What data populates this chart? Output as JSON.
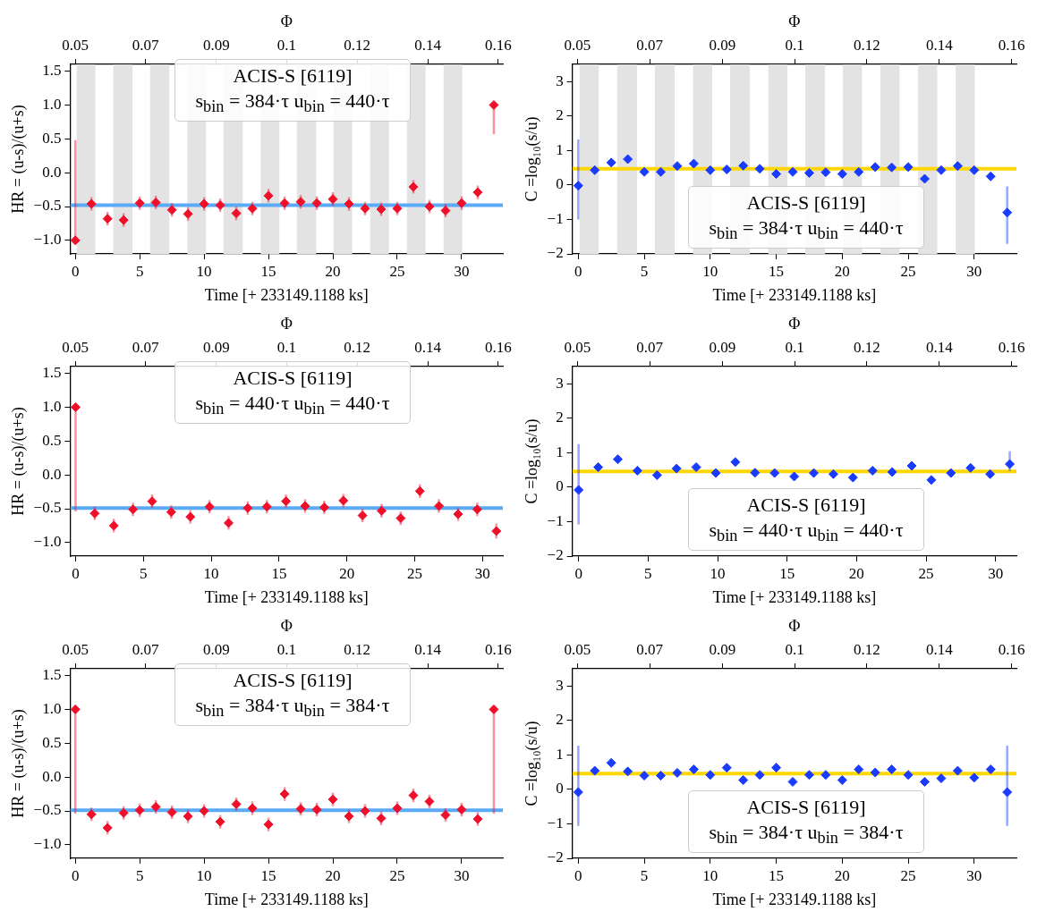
{
  "chart_data": [
    {
      "type": "scatter",
      "xlabel": "Time [+ 233149.1188 ks]",
      "ylabel": "HR = (u-s)/(u+s)",
      "x2label": "Φ",
      "xlim": [
        -0.4,
        33.2
      ],
      "xticks": [
        0,
        5,
        10,
        15,
        20,
        25,
        30
      ],
      "x2lim": [
        0.0487,
        0.1612
      ],
      "x2ticks": [
        {
          "value": 0.05,
          "label": "0.05"
        },
        {
          "value": 0.0683,
          "label": "0.07"
        },
        {
          "value": 0.0867,
          "label": "0.09"
        },
        {
          "value": 0.105,
          "label": "0.1"
        },
        {
          "value": 0.1233,
          "label": "0.12"
        },
        {
          "value": 0.1417,
          "label": "0.14"
        },
        {
          "value": 0.16,
          "label": "0.16"
        }
      ],
      "ylim": [
        -1.2,
        1.6
      ],
      "yticks": [
        {
          "value": -1,
          "label": "−1.0"
        },
        {
          "value": -0.5,
          "label": "−0.5"
        },
        {
          "value": 0,
          "label": "0.0"
        },
        {
          "value": 0.5,
          "label": "0.5"
        },
        {
          "value": 1,
          "label": "1.0"
        },
        {
          "value": 1.5,
          "label": "1.5"
        }
      ],
      "marker": "diamond",
      "legend": false,
      "grid": false,
      "series": [
        {
          "color": "#f0102a",
          "x": [
            0,
            1.25,
            2.5,
            3.75,
            5,
            6.25,
            7.5,
            8.75,
            10,
            11.25,
            12.5,
            13.75,
            15,
            16.25,
            17.5,
            18.75,
            20,
            21.25,
            22.5,
            23.75,
            25,
            26.25,
            27.5,
            28.75,
            30,
            31.25,
            32.5
          ],
          "values": [
            -1.0,
            -0.46,
            -0.68,
            -0.7,
            -0.45,
            -0.44,
            -0.55,
            -0.61,
            -0.46,
            -0.48,
            -0.6,
            -0.53,
            -0.34,
            -0.45,
            -0.43,
            -0.45,
            -0.39,
            -0.46,
            -0.53,
            -0.54,
            -0.53,
            -0.21,
            -0.5,
            -0.56,
            -0.45,
            -0.29,
            1.0
          ],
          "errors": [
            [
              -1.0,
              0.48
            ],
            0.1,
            0.1,
            0.1,
            0.1,
            0.1,
            0.1,
            0.1,
            0.1,
            0.1,
            0.1,
            0.1,
            0.1,
            0.1,
            0.1,
            0.1,
            0.1,
            0.1,
            0.1,
            0.1,
            0.1,
            0.1,
            0.1,
            0.1,
            0.1,
            0.1,
            [
              0.57,
              1.0
            ]
          ]
        }
      ],
      "ref_lines": [
        {
          "axis": "y",
          "value": -0.48,
          "color": "#5aaaf5"
        }
      ],
      "bands": [
        {
          "axis": "x",
          "from": 0.1,
          "to": 1.55,
          "color": "#e3e3e3"
        },
        {
          "axis": "x",
          "from": 2.95,
          "to": 4.45,
          "color": "#e3e3e3"
        },
        {
          "axis": "x",
          "from": 5.8,
          "to": 7.3,
          "color": "#e3e3e3"
        },
        {
          "axis": "x",
          "from": 8.7,
          "to": 10.15,
          "color": "#e3e3e3"
        },
        {
          "axis": "x",
          "from": 11.5,
          "to": 13.0,
          "color": "#e3e3e3"
        },
        {
          "axis": "x",
          "from": 14.4,
          "to": 15.85,
          "color": "#e3e3e3"
        },
        {
          "axis": "x",
          "from": 17.2,
          "to": 18.7,
          "color": "#e3e3e3"
        },
        {
          "axis": "x",
          "from": 20.05,
          "to": 21.5,
          "color": "#e3e3e3"
        },
        {
          "axis": "x",
          "from": 22.9,
          "to": 24.35,
          "color": "#e3e3e3"
        },
        {
          "axis": "x",
          "from": 25.75,
          "to": 27.2,
          "color": "#e3e3e3"
        },
        {
          "axis": "x",
          "from": 28.6,
          "to": 30.05,
          "color": "#e3e3e3"
        }
      ],
      "annotations": [
        "ACIS-S  [6119]",
        "s$_{bin}$ = 384·τ   u$_{bin}$ = 440·τ"
      ]
    },
    {
      "type": "scatter",
      "xlabel": "Time [+ 233149.1188 ks]",
      "ylabel": "C =log₁₀(s/u)",
      "x2label": "Φ",
      "xlim": [
        -0.45,
        33.2
      ],
      "xticks": [
        0,
        5,
        10,
        15,
        20,
        25,
        30
      ],
      "x2lim": [
        0.0487,
        0.1612
      ],
      "x2ticks": [
        {
          "value": 0.05,
          "label": "0.05"
        },
        {
          "value": 0.0683,
          "label": "0.07"
        },
        {
          "value": 0.0867,
          "label": "0.09"
        },
        {
          "value": 0.105,
          "label": "0.1"
        },
        {
          "value": 0.1233,
          "label": "0.12"
        },
        {
          "value": 0.1417,
          "label": "0.14"
        },
        {
          "value": 0.16,
          "label": "0.16"
        }
      ],
      "ylim": [
        -2,
        3.5
      ],
      "yticks": [
        {
          "value": -2,
          "label": "−2"
        },
        {
          "value": -1,
          "label": "−1"
        },
        0,
        1,
        2,
        3
      ],
      "marker": "diamond",
      "legend": false,
      "grid": false,
      "series": [
        {
          "color": "#1a3cff",
          "x": [
            0,
            1.25,
            2.5,
            3.75,
            5,
            6.25,
            7.5,
            8.75,
            10,
            11.25,
            12.5,
            13.75,
            15,
            16.25,
            17.5,
            18.75,
            20,
            21.25,
            22.5,
            23.75,
            25,
            26.25,
            27.5,
            28.75,
            30,
            31.25,
            32.5
          ],
          "values": [
            -0.02,
            0.43,
            0.65,
            0.75,
            0.38,
            0.38,
            0.55,
            0.62,
            0.43,
            0.45,
            0.56,
            0.47,
            0.32,
            0.38,
            0.35,
            0.37,
            0.32,
            0.38,
            0.52,
            0.51,
            0.52,
            0.18,
            0.43,
            0.55,
            0.43,
            0.25,
            -0.8
          ],
          "errors": [
            [
              -1.0,
              1.32
            ],
            0.1,
            0.1,
            0.1,
            0.1,
            0.1,
            0.1,
            0.1,
            0.1,
            0.1,
            0.1,
            0.1,
            0.1,
            0.1,
            0.1,
            0.1,
            0.1,
            0.1,
            0.1,
            0.1,
            0.1,
            0.1,
            0.1,
            0.1,
            0.1,
            0.1,
            [
              -1.71,
              -0.04
            ]
          ]
        }
      ],
      "ref_lines": [
        {
          "axis": "y",
          "value": 0.47,
          "color": "#ffd700"
        }
      ],
      "bands": [
        {
          "axis": "x",
          "from": 0.1,
          "to": 1.55,
          "color": "#e3e3e3"
        },
        {
          "axis": "x",
          "from": 2.95,
          "to": 4.45,
          "color": "#e3e3e3"
        },
        {
          "axis": "x",
          "from": 5.8,
          "to": 7.3,
          "color": "#e3e3e3"
        },
        {
          "axis": "x",
          "from": 8.7,
          "to": 10.15,
          "color": "#e3e3e3"
        },
        {
          "axis": "x",
          "from": 11.5,
          "to": 13.0,
          "color": "#e3e3e3"
        },
        {
          "axis": "x",
          "from": 14.4,
          "to": 15.85,
          "color": "#e3e3e3"
        },
        {
          "axis": "x",
          "from": 17.2,
          "to": 18.7,
          "color": "#e3e3e3"
        },
        {
          "axis": "x",
          "from": 20.05,
          "to": 21.5,
          "color": "#e3e3e3"
        },
        {
          "axis": "x",
          "from": 22.9,
          "to": 24.35,
          "color": "#e3e3e3"
        },
        {
          "axis": "x",
          "from": 25.75,
          "to": 27.2,
          "color": "#e3e3e3"
        },
        {
          "axis": "x",
          "from": 28.6,
          "to": 30.05,
          "color": "#e3e3e3"
        }
      ],
      "annotations": [
        "ACIS-S  [6119]",
        "s$_{bin}$ = 384·τ   u$_{bin}$ = 440·τ"
      ]
    },
    {
      "type": "scatter",
      "xlabel": "Time [+ 233149.1188 ks]",
      "ylabel": "HR = (u-s)/(u+s)",
      "x2label": "Φ",
      "xlim": [
        -0.4,
        31.5
      ],
      "xticks": [
        0,
        5,
        10,
        15,
        20,
        25,
        30
      ],
      "x2lim": [
        0.0487,
        0.1612
      ],
      "x2ticks": [
        {
          "value": 0.05,
          "label": "0.05"
        },
        {
          "value": 0.0683,
          "label": "0.07"
        },
        {
          "value": 0.0867,
          "label": "0.09"
        },
        {
          "value": 0.105,
          "label": "0.1"
        },
        {
          "value": 0.1233,
          "label": "0.12"
        },
        {
          "value": 0.1417,
          "label": "0.14"
        },
        {
          "value": 0.16,
          "label": "0.16"
        }
      ],
      "ylim": [
        -1.2,
        1.6
      ],
      "yticks": [
        {
          "value": -1,
          "label": "−1.0"
        },
        {
          "value": -0.5,
          "label": "−0.5"
        },
        {
          "value": 0,
          "label": "0.0"
        },
        {
          "value": 0.5,
          "label": "0.5"
        },
        {
          "value": 1,
          "label": "1.0"
        },
        {
          "value": 1.5,
          "label": "1.5"
        }
      ],
      "marker": "diamond",
      "legend": false,
      "grid": false,
      "series": [
        {
          "color": "#f0102a",
          "x": [
            0,
            1.41,
            2.82,
            4.23,
            5.64,
            7.05,
            8.46,
            9.87,
            11.28,
            12.69,
            14.1,
            15.51,
            16.92,
            18.33,
            19.74,
            21.15,
            22.56,
            23.97,
            25.38,
            26.79,
            28.2,
            29.61,
            31.02
          ],
          "values": [
            1.0,
            -0.57,
            -0.75,
            -0.51,
            -0.39,
            -0.55,
            -0.62,
            -0.47,
            -0.71,
            -0.49,
            -0.47,
            -0.39,
            -0.46,
            -0.48,
            -0.38,
            -0.6,
            -0.53,
            -0.64,
            -0.24,
            -0.46,
            -0.58,
            -0.51,
            -0.83
          ],
          "errors": [
            [
              -0.54,
              1.0
            ],
            0.1,
            0.1,
            0.1,
            0.1,
            0.1,
            0.1,
            0.1,
            0.1,
            0.1,
            0.1,
            0.1,
            0.1,
            0.1,
            0.1,
            0.1,
            0.1,
            0.1,
            0.1,
            0.1,
            0.1,
            0.1,
            0.11
          ]
        }
      ],
      "ref_lines": [
        {
          "axis": "y",
          "value": -0.49,
          "color": "#5aaaf5"
        }
      ],
      "annotations": [
        "ACIS-S  [6119]",
        "s$_{bin}$ = 440·τ   u$_{bin}$ = 440·τ"
      ]
    },
    {
      "type": "scatter",
      "xlabel": "Time [+ 233149.1188 ks]",
      "ylabel": "C =log₁₀(s/u)",
      "x2label": "Φ",
      "xlim": [
        -0.45,
        31.5
      ],
      "xticks": [
        0,
        5,
        10,
        15,
        20,
        25,
        30
      ],
      "x2lim": [
        0.0487,
        0.1612
      ],
      "x2ticks": [
        {
          "value": 0.05,
          "label": "0.05"
        },
        {
          "value": 0.0683,
          "label": "0.07"
        },
        {
          "value": 0.0867,
          "label": "0.09"
        },
        {
          "value": 0.105,
          "label": "0.1"
        },
        {
          "value": 0.1233,
          "label": "0.12"
        },
        {
          "value": 0.1417,
          "label": "0.14"
        },
        {
          "value": 0.16,
          "label": "0.16"
        }
      ],
      "ylim": [
        -2,
        3.5
      ],
      "yticks": [
        {
          "value": -2,
          "label": "−2"
        },
        {
          "value": -1,
          "label": "−1"
        },
        0,
        1,
        2,
        3
      ],
      "marker": "diamond",
      "legend": false,
      "grid": false,
      "series": [
        {
          "color": "#1a3cff",
          "x": [
            0,
            1.41,
            2.82,
            4.23,
            5.64,
            7.05,
            8.46,
            9.87,
            11.28,
            12.69,
            14.1,
            15.51,
            16.92,
            18.33,
            19.74,
            21.15,
            22.56,
            23.97,
            25.38,
            26.79,
            28.2,
            29.61,
            31.02
          ],
          "values": [
            -0.08,
            0.58,
            0.81,
            0.48,
            0.35,
            0.54,
            0.58,
            0.41,
            0.73,
            0.42,
            0.41,
            0.31,
            0.41,
            0.38,
            0.28,
            0.48,
            0.44,
            0.62,
            0.21,
            0.41,
            0.56,
            0.38,
            0.67
          ],
          "errors": [
            [
              -1.08,
              1.25
            ],
            0.1,
            0.1,
            0.1,
            0.1,
            0.1,
            0.1,
            0.1,
            0.1,
            0.1,
            0.1,
            0.1,
            0.1,
            0.1,
            0.1,
            0.1,
            0.1,
            0.1,
            0.1,
            0.1,
            0.1,
            0.1,
            [
              0.46,
              1.04
            ]
          ]
        }
      ],
      "ref_lines": [
        {
          "axis": "y",
          "value": 0.46,
          "color": "#ffd700"
        }
      ],
      "annotations": [
        "ACIS-S  [6119]",
        "s$_{bin}$ = 440·τ   u$_{bin}$ = 440·τ"
      ]
    },
    {
      "type": "scatter",
      "xlabel": "Time [+ 233149.1188 ks]",
      "ylabel": "HR = (u-s)/(u+s)",
      "x2label": "Φ",
      "xlim": [
        -0.4,
        33.2
      ],
      "xticks": [
        0,
        5,
        10,
        15,
        20,
        25,
        30
      ],
      "x2lim": [
        0.0487,
        0.1612
      ],
      "x2ticks": [
        {
          "value": 0.05,
          "label": "0.05"
        },
        {
          "value": 0.0683,
          "label": "0.07"
        },
        {
          "value": 0.0867,
          "label": "0.09"
        },
        {
          "value": 0.105,
          "label": "0.1"
        },
        {
          "value": 0.1233,
          "label": "0.12"
        },
        {
          "value": 0.1417,
          "label": "0.14"
        },
        {
          "value": 0.16,
          "label": "0.16"
        }
      ],
      "ylim": [
        -1.2,
        1.6
      ],
      "yticks": [
        {
          "value": -1,
          "label": "−1.0"
        },
        {
          "value": -0.5,
          "label": "−0.5"
        },
        {
          "value": 0,
          "label": "0.0"
        },
        {
          "value": 0.5,
          "label": "0.5"
        },
        {
          "value": 1,
          "label": "1.0"
        },
        {
          "value": 1.5,
          "label": "1.5"
        }
      ],
      "marker": "diamond",
      "legend": false,
      "grid": false,
      "series": [
        {
          "color": "#f0102a",
          "x": [
            0,
            1.25,
            2.5,
            3.75,
            5,
            6.25,
            7.5,
            8.75,
            10,
            11.25,
            12.5,
            13.75,
            15,
            16.25,
            17.5,
            18.75,
            20,
            21.25,
            22.5,
            23.75,
            25,
            26.25,
            27.5,
            28.75,
            30,
            31.25,
            32.5
          ],
          "values": [
            1.0,
            -0.55,
            -0.75,
            -0.53,
            -0.49,
            -0.44,
            -0.52,
            -0.58,
            -0.5,
            -0.66,
            -0.4,
            -0.46,
            -0.7,
            -0.25,
            -0.47,
            -0.48,
            -0.33,
            -0.58,
            -0.5,
            -0.61,
            -0.46,
            -0.27,
            -0.36,
            -0.56,
            -0.48,
            -0.62,
            1.0
          ],
          "errors": [
            [
              -0.54,
              1.0
            ],
            0.1,
            0.1,
            0.1,
            0.1,
            0.1,
            0.1,
            0.1,
            0.1,
            0.1,
            0.1,
            0.1,
            0.1,
            0.1,
            0.1,
            0.1,
            0.1,
            0.1,
            0.1,
            0.1,
            0.1,
            0.1,
            0.1,
            0.1,
            0.1,
            0.1,
            [
              -0.54,
              1.0
            ]
          ]
        }
      ],
      "ref_lines": [
        {
          "axis": "y",
          "value": -0.49,
          "color": "#5aaaf5"
        }
      ],
      "annotations": [
        "ACIS-S  [6119]",
        "s$_{bin}$ = 384·τ   u$_{bin}$ = 384·τ"
      ]
    },
    {
      "type": "scatter",
      "xlabel": "Time [+ 233149.1188 ks]",
      "ylabel": "C =log₁₀(s/u)",
      "x2label": "Φ",
      "xlim": [
        -0.45,
        33.2
      ],
      "xticks": [
        0,
        5,
        10,
        15,
        20,
        25,
        30
      ],
      "x2lim": [
        0.0487,
        0.1612
      ],
      "x2ticks": [
        {
          "value": 0.05,
          "label": "0.05"
        },
        {
          "value": 0.0683,
          "label": "0.07"
        },
        {
          "value": 0.0867,
          "label": "0.09"
        },
        {
          "value": 0.105,
          "label": "0.1"
        },
        {
          "value": 0.1233,
          "label": "0.12"
        },
        {
          "value": 0.1417,
          "label": "0.14"
        },
        {
          "value": 0.16,
          "label": "0.16"
        }
      ],
      "ylim": [
        -2,
        3.5
      ],
      "yticks": [
        {
          "value": -2,
          "label": "−2"
        },
        {
          "value": -1,
          "label": "−1"
        },
        0,
        1,
        2,
        3
      ],
      "marker": "diamond",
      "legend": false,
      "grid": false,
      "series": [
        {
          "color": "#1a3cff",
          "x": [
            0,
            1.25,
            2.5,
            3.75,
            5,
            6.25,
            7.5,
            8.75,
            10,
            11.25,
            12.5,
            13.75,
            15,
            16.25,
            17.5,
            18.75,
            20,
            21.25,
            22.5,
            23.75,
            25,
            26.25,
            27.5,
            28.75,
            30,
            31.25,
            32.5
          ],
          "values": [
            -0.08,
            0.54,
            0.77,
            0.52,
            0.4,
            0.4,
            0.48,
            0.58,
            0.42,
            0.63,
            0.27,
            0.42,
            0.63,
            0.22,
            0.42,
            0.42,
            0.27,
            0.58,
            0.49,
            0.58,
            0.42,
            0.22,
            0.32,
            0.54,
            0.34,
            0.58,
            -0.08
          ],
          "errors": [
            [
              -1.06,
              1.27
            ],
            0.1,
            0.1,
            0.1,
            0.1,
            0.1,
            0.1,
            0.1,
            0.1,
            0.1,
            0.1,
            0.1,
            0.1,
            0.1,
            0.1,
            0.1,
            0.1,
            0.1,
            0.1,
            0.1,
            0.1,
            0.1,
            0.1,
            0.1,
            0.1,
            0.1,
            [
              -1.06,
              1.27
            ]
          ]
        }
      ],
      "ref_lines": [
        {
          "axis": "y",
          "value": 0.46,
          "color": "#ffd700"
        }
      ],
      "annotations": [
        "ACIS-S  [6119]",
        "s$_{bin}$ = 384·τ   u$_{bin}$ = 384·τ"
      ]
    }
  ]
}
